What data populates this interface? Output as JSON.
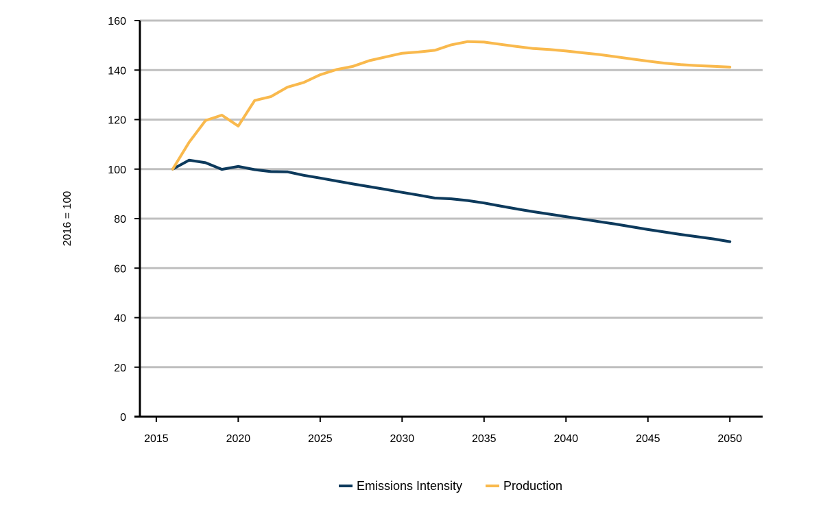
{
  "chart_data": {
    "type": "line",
    "ylabel": "2016 = 100",
    "xlabel": "",
    "title": "",
    "xlim": [
      2014,
      2052
    ],
    "ylim": [
      0,
      160
    ],
    "x_ticks": [
      2015,
      2020,
      2025,
      2030,
      2035,
      2040,
      2045,
      2050
    ],
    "y_ticks": [
      0,
      20,
      40,
      60,
      80,
      100,
      120,
      140,
      160
    ],
    "grid": "horizontal",
    "legend_position": "bottom",
    "x": [
      2016,
      2017,
      2018,
      2019,
      2020,
      2021,
      2022,
      2023,
      2024,
      2025,
      2026,
      2027,
      2028,
      2029,
      2030,
      2031,
      2032,
      2033,
      2034,
      2035,
      2036,
      2037,
      2038,
      2039,
      2040,
      2041,
      2042,
      2043,
      2044,
      2045,
      2046,
      2047,
      2048,
      2049,
      2050
    ],
    "series": [
      {
        "name": "Emissions Intensity",
        "color": "#0d3a5c",
        "values": [
          100,
          103.6,
          102.6,
          99.9,
          101.1,
          99.8,
          99.0,
          98.9,
          97.5,
          96.4,
          95.2,
          94.0,
          92.9,
          91.8,
          90.6,
          89.5,
          88.3,
          88.0,
          87.3,
          86.3,
          85.1,
          83.9,
          82.8,
          81.8,
          80.8,
          79.8,
          78.8,
          77.8,
          76.7,
          75.6,
          74.6,
          73.6,
          72.7,
          71.8,
          70.7
        ]
      },
      {
        "name": "Production",
        "color": "#f9b94d",
        "values": [
          100,
          110.8,
          119.6,
          121.8,
          117.4,
          127.7,
          129.3,
          133.1,
          135.0,
          138.1,
          140.2,
          141.5,
          143.8,
          145.3,
          146.8,
          147.3,
          148.0,
          150.2,
          151.5,
          151.3,
          150.4,
          149.5,
          148.7,
          148.3,
          147.7,
          147.0,
          146.3,
          145.4,
          144.5,
          143.6,
          142.8,
          142.2,
          141.8,
          141.5,
          141.2
        ]
      }
    ]
  }
}
